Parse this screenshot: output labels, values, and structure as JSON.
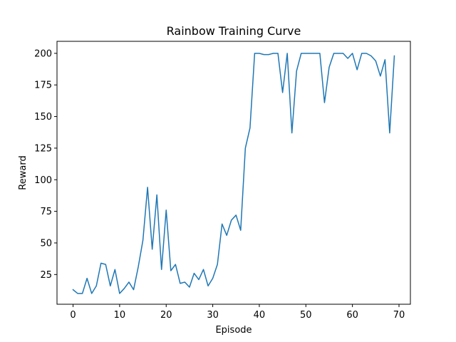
{
  "chart_data": {
    "type": "line",
    "title": "Rainbow Training Curve",
    "xlabel": "Episode",
    "ylabel": "Reward",
    "xlim": [
      -3.45,
      72.45
    ],
    "ylim": [
      1.5,
      209.5
    ],
    "xticks": [
      0,
      10,
      20,
      30,
      40,
      50,
      60,
      70
    ],
    "yticks": [
      25,
      50,
      75,
      100,
      125,
      150,
      175,
      200
    ],
    "grid": false,
    "series": [
      {
        "color": "#1f77b4",
        "x": [
          0,
          1,
          2,
          3,
          4,
          5,
          6,
          7,
          8,
          9,
          10,
          11,
          12,
          13,
          14,
          15,
          16,
          17,
          18,
          19,
          20,
          21,
          22,
          23,
          24,
          25,
          26,
          27,
          28,
          29,
          30,
          31,
          32,
          33,
          34,
          35,
          36,
          37,
          38,
          39,
          40,
          41,
          42,
          43,
          44,
          45,
          46,
          47,
          48,
          49,
          50,
          51,
          52,
          53,
          54,
          55,
          56,
          57,
          58,
          59,
          60,
          61,
          62,
          63,
          64,
          65,
          66,
          67,
          68,
          69
        ],
        "values": [
          13,
          10,
          10,
          22,
          10,
          16,
          34,
          33,
          16,
          29,
          10,
          14,
          19,
          13,
          31,
          52,
          94,
          45,
          88,
          29,
          76,
          28,
          33,
          18,
          19,
          15,
          26,
          21,
          29,
          16,
          22,
          33,
          65,
          56,
          68,
          72,
          60,
          125,
          141,
          200,
          200,
          199,
          199,
          200,
          200,
          169,
          200,
          137,
          186,
          200,
          200,
          200,
          200,
          200,
          161,
          189,
          200,
          200,
          200,
          196,
          200,
          187,
          200,
          200,
          198,
          194,
          182,
          195,
          137,
          198
        ]
      }
    ]
  }
}
